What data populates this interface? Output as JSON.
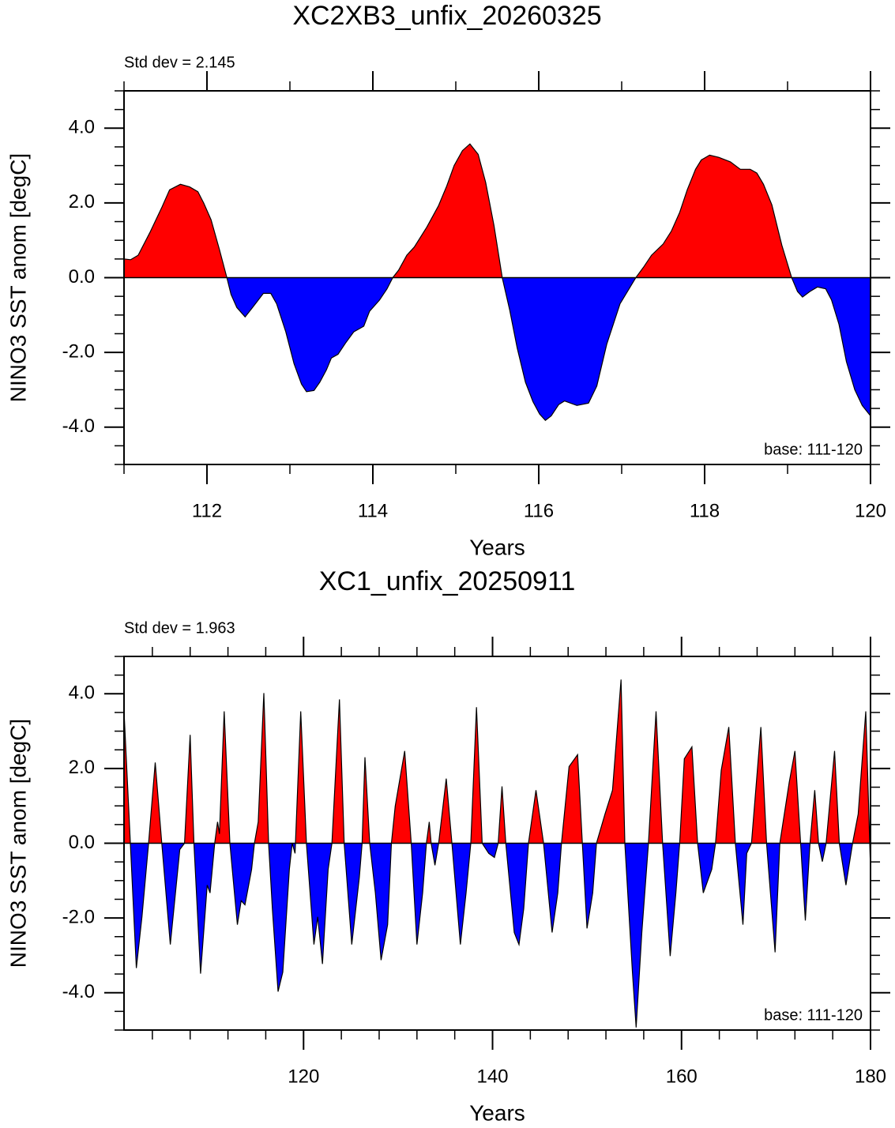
{
  "chart_data": [
    {
      "type": "area",
      "title": "XC2XB3_unfix_20260325",
      "annotation_left": "Std dev = 2.145",
      "annotation_right": "base: 111-120",
      "xlabel": "Years",
      "ylabel": "NINO3 SST anom [degC]",
      "positive_color": "#ff0000",
      "negative_color": "#0000ff",
      "line_color": "#000000",
      "xlim": [
        111,
        120
      ],
      "ylim": [
        -5,
        5
      ],
      "xticks": [
        112,
        114,
        116,
        118,
        120
      ],
      "xminorticks": [
        111,
        113,
        115,
        117,
        119
      ],
      "yticks": [
        {
          "value": -4,
          "label": "-4.0"
        },
        {
          "value": -2,
          "label": "-2.0"
        },
        {
          "value": 0,
          "label": "0.0"
        },
        {
          "value": 2,
          "label": "2.0"
        },
        {
          "value": 4,
          "label": "4.0"
        }
      ],
      "yminorticks": [
        -5,
        -4.5,
        -3.5,
        -3,
        -2.5,
        -1.5,
        -1,
        -0.5,
        0.5,
        1,
        1.5,
        2.5,
        3,
        3.5,
        4.5,
        5
      ],
      "x": [
        111.0,
        111.08,
        111.17,
        111.31,
        111.46,
        111.55,
        111.68,
        111.79,
        111.89,
        111.96,
        112.05,
        112.15,
        112.24,
        112.29,
        112.36,
        112.46,
        112.55,
        112.68,
        112.77,
        112.84,
        112.95,
        113.05,
        113.14,
        113.2,
        113.29,
        113.36,
        113.44,
        113.5,
        113.58,
        113.67,
        113.77,
        113.89,
        113.96,
        114.08,
        114.17,
        114.24,
        114.31,
        114.41,
        114.5,
        114.65,
        114.79,
        114.89,
        114.98,
        115.08,
        115.17,
        115.27,
        115.36,
        115.46,
        115.56,
        115.65,
        115.74,
        115.84,
        115.93,
        116.01,
        116.08,
        116.15,
        116.24,
        116.31,
        116.46,
        116.6,
        116.7,
        116.82,
        116.98,
        117.17,
        117.27,
        117.36,
        117.5,
        117.6,
        117.7,
        117.79,
        117.89,
        117.96,
        118.06,
        118.17,
        118.31,
        118.43,
        118.55,
        118.63,
        118.71,
        118.81,
        118.93,
        119.05,
        119.12,
        119.18,
        119.27,
        119.36,
        119.46,
        119.53,
        119.62,
        119.71,
        119.81,
        119.9,
        120.0
      ],
      "values": [
        0.5,
        0.48,
        0.6,
        1.2,
        1.9,
        2.35,
        2.5,
        2.43,
        2.3,
        2.0,
        1.55,
        0.75,
        0,
        -0.45,
        -0.8,
        -1.05,
        -0.8,
        -0.42,
        -0.42,
        -0.7,
        -1.45,
        -2.3,
        -2.85,
        -3.05,
        -3.02,
        -2.8,
        -2.47,
        -2.15,
        -2.05,
        -1.75,
        -1.45,
        -1.3,
        -0.9,
        -0.6,
        -0.3,
        0,
        0.2,
        0.6,
        0.82,
        1.35,
        1.92,
        2.45,
        3.0,
        3.4,
        3.58,
        3.3,
        2.55,
        1.4,
        0,
        -0.87,
        -1.88,
        -2.8,
        -3.32,
        -3.65,
        -3.82,
        -3.7,
        -3.4,
        -3.3,
        -3.42,
        -3.36,
        -2.9,
        -1.78,
        -0.7,
        0,
        0.3,
        0.6,
        0.9,
        1.25,
        1.75,
        2.35,
        2.9,
        3.15,
        3.28,
        3.22,
        3.1,
        2.9,
        2.9,
        2.8,
        2.5,
        1.95,
        0.87,
        0,
        -0.37,
        -0.52,
        -0.37,
        -0.25,
        -0.3,
        -0.6,
        -1.25,
        -2.25,
        -3.0,
        -3.42,
        -3.7
      ]
    },
    {
      "type": "area",
      "title": "XC1_unfix_20250911",
      "annotation_left": "Std dev = 1.963",
      "annotation_right": "base: 111-120",
      "xlabel": "Years",
      "ylabel": "NINO3 SST anom [degC]",
      "positive_color": "#ff0000",
      "negative_color": "#0000ff",
      "line_color": "#000000",
      "xlim": [
        101,
        180
      ],
      "ylim": [
        -5,
        5
      ],
      "xticks": [
        120,
        140,
        160,
        180
      ],
      "xminorticks": [
        104,
        108,
        112,
        116,
        124,
        128,
        132,
        136,
        144,
        148,
        152,
        156,
        164,
        168,
        172,
        176
      ],
      "yticks": [
        {
          "value": -4,
          "label": "-4.0"
        },
        {
          "value": -2,
          "label": "-2.0"
        },
        {
          "value": 0,
          "label": "0.0"
        },
        {
          "value": 2,
          "label": "2.0"
        },
        {
          "value": 4,
          "label": "4.0"
        }
      ],
      "yminorticks": [
        -5,
        -4.5,
        -3.5,
        -3,
        -2.5,
        -1.5,
        -1,
        -0.5,
        0.5,
        1,
        1.5,
        2.5,
        3,
        3.5,
        4.5,
        5
      ],
      "x": [
        101.0,
        101.4,
        102.3,
        102.9,
        103.6,
        104.3,
        105.0,
        105.9,
        106.9,
        107.4,
        108.0,
        108.4,
        109.1,
        109.8,
        110.1,
        110.6,
        110.9,
        111.1,
        111.6,
        112.2,
        113.0,
        113.4,
        113.8,
        114.5,
        114.8,
        115.2,
        115.8,
        116.3,
        116.7,
        117.3,
        117.8,
        118.5,
        118.8,
        119.1,
        119.7,
        120.3,
        121.1,
        121.5,
        122.0,
        122.6,
        123.0,
        123.8,
        124.3,
        125.1,
        125.9,
        126.2,
        126.5,
        127.0,
        127.6,
        128.2,
        128.9,
        129.3,
        129.7,
        130.7,
        131.4,
        132.0,
        132.6,
        133.0,
        133.3,
        133.5,
        133.9,
        134.3,
        135.1,
        135.7,
        136.6,
        137.2,
        137.7,
        138.3,
        138.9,
        139.6,
        140.2,
        140.6,
        141.0,
        141.4,
        142.3,
        142.8,
        143.3,
        143.8,
        144.6,
        145.4,
        146.3,
        146.9,
        147.3,
        148.1,
        149.0,
        149.5,
        150.0,
        150.6,
        151.0,
        151.9,
        152.7,
        153.6,
        154.0,
        154.8,
        155.2,
        155.8,
        156.5,
        157.3,
        158.0,
        158.8,
        159.4,
        159.8,
        160.3,
        161.1,
        161.7,
        162.3,
        163.2,
        163.6,
        164.2,
        165.0,
        165.7,
        166.5,
        166.9,
        167.4,
        168.4,
        169.0,
        169.9,
        170.4,
        171.4,
        172.0,
        172.6,
        173.1,
        173.6,
        174.1,
        174.5,
        174.9,
        175.3,
        176.2,
        176.7,
        177.4,
        178.1,
        178.7,
        179.5,
        180.0
      ],
      "values": [
        3.53,
        1.42,
        -3.34,
        -1.97,
        0,
        2.16,
        0,
        -2.71,
        -0.17,
        0,
        2.9,
        0,
        -3.49,
        -1.12,
        -1.33,
        0,
        0.57,
        0.25,
        3.53,
        0,
        -2.18,
        -1.54,
        -1.65,
        -0.7,
        0,
        0.57,
        4.02,
        0,
        -1.75,
        -3.97,
        -3.45,
        -0.7,
        0,
        -0.27,
        3.53,
        0,
        -2.71,
        -1.97,
        -3.23,
        -0.7,
        0,
        3.85,
        0,
        -2.71,
        -0.91,
        0,
        2.3,
        0,
        -1.33,
        -3.13,
        -2.18,
        0,
        0.99,
        2.47,
        0,
        -2.71,
        -1.33,
        0,
        0.57,
        0,
        -0.59,
        0,
        1.73,
        0,
        -2.71,
        -1.33,
        0,
        3.64,
        0,
        -0.27,
        -0.38,
        0,
        1.52,
        0,
        -2.39,
        -2.71,
        -1.75,
        0,
        1.42,
        0,
        -2.39,
        -1.33,
        0,
        2.05,
        2.37,
        0,
        -2.28,
        -1.33,
        0,
        0.78,
        1.42,
        4.38,
        0,
        -3.45,
        -4.93,
        -2.39,
        0,
        3.53,
        0,
        -3.02,
        -1.33,
        0,
        2.26,
        2.58,
        0,
        -1.33,
        -0.7,
        0,
        1.95,
        3.11,
        0,
        -2.18,
        -0.27,
        0,
        3.11,
        0,
        -2.92,
        0,
        1.63,
        2.47,
        0,
        -2.07,
        0,
        1.42,
        0,
        -0.49,
        0,
        2.47,
        0,
        -1.12,
        0,
        0.78,
        3.53,
        -0.7
      ]
    }
  ]
}
